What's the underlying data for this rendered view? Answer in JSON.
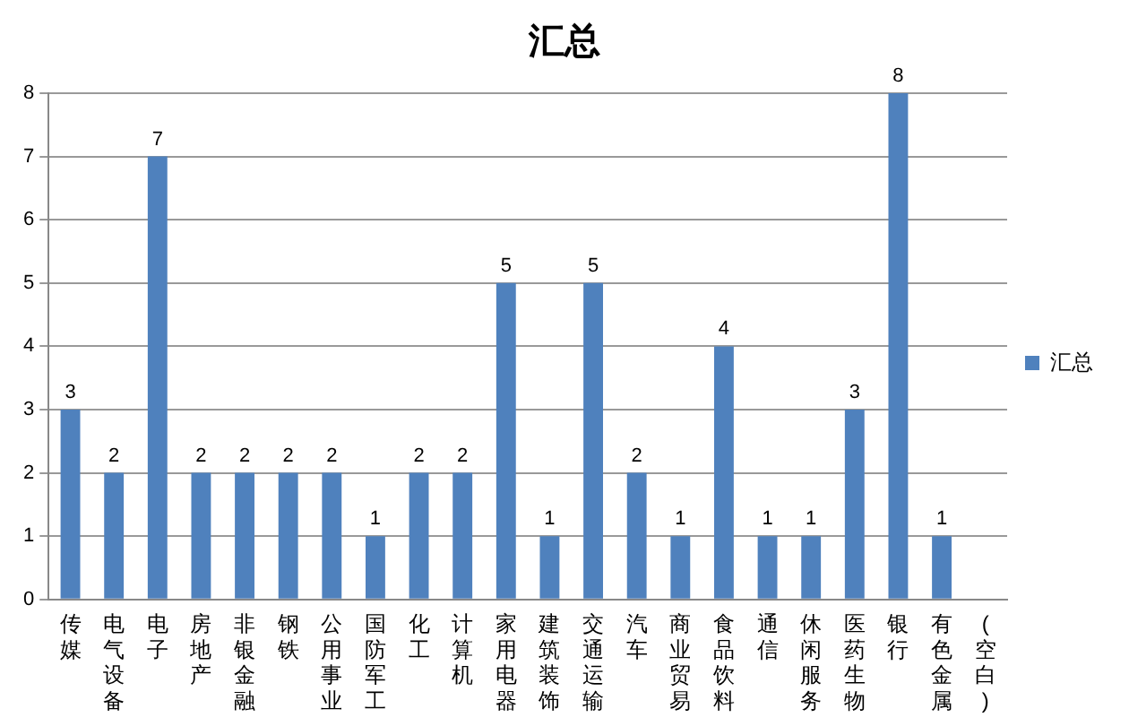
{
  "chart_data": {
    "type": "bar",
    "title": "汇总",
    "categories": [
      "传媒",
      "电气设备",
      "电子",
      "房地产",
      "非银金融",
      "钢铁",
      "公用事业",
      "国防军工",
      "化工",
      "计算机",
      "家用电器",
      "建筑装饰",
      "交通运输",
      "汽车",
      "商业贸易",
      "食品饮料",
      "通信",
      "休闲服务",
      "医药生物",
      "银行",
      "有色金属",
      "(空白)"
    ],
    "series": [
      {
        "name": "汇总",
        "color": "#4f81bd",
        "values": [
          3,
          2,
          7,
          2,
          2,
          2,
          2,
          1,
          2,
          2,
          5,
          1,
          5,
          2,
          1,
          4,
          1,
          1,
          3,
          8,
          1,
          null
        ]
      }
    ],
    "ylim": [
      0,
      8
    ],
    "yticks": [
      0,
      1,
      2,
      3,
      4,
      5,
      6,
      7,
      8
    ],
    "grid": "y",
    "legend": "right",
    "data_labels": true
  }
}
